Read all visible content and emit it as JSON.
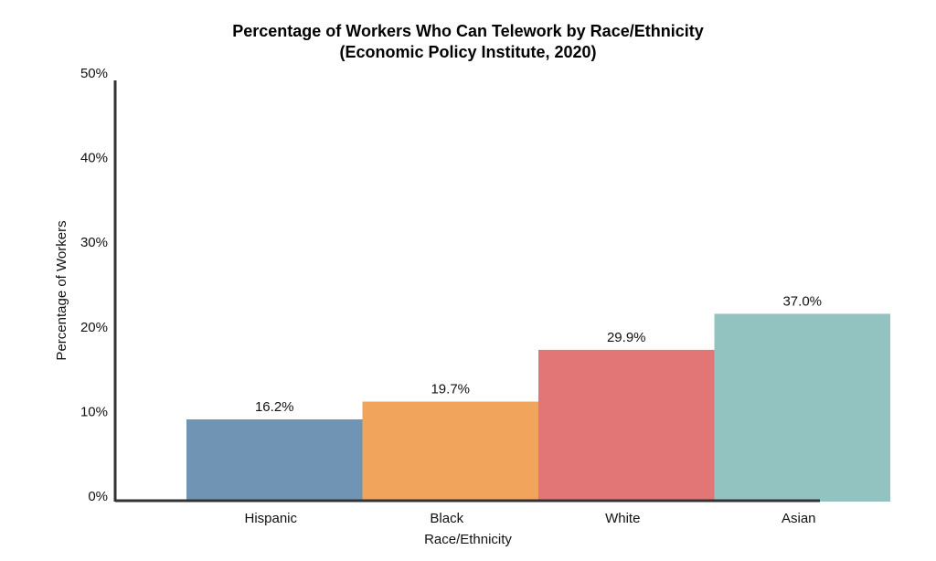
{
  "chart_data": {
    "type": "bar",
    "title": "Percentage of Workers Who Can Telework by Race/Ethnicity",
    "subtitle": "(Economic Policy Institute, 2020)",
    "xlabel": "Race/Ethnicity",
    "ylabel": "Percentage of Workers",
    "categories": [
      "Hispanic",
      "Black",
      "White",
      "Asian"
    ],
    "values": [
      16.2,
      19.7,
      29.9,
      37.0
    ],
    "value_labels": [
      "16.2%",
      "19.7%",
      "29.9%",
      "37.0%"
    ],
    "colors": [
      "#7094b4",
      "#f0a45c",
      "#e27677",
      "#93c3c1"
    ],
    "yticks": [
      0,
      10,
      20,
      30,
      40,
      50
    ],
    "ytick_labels": [
      "0%",
      "10%",
      "20%",
      "30%",
      "40%",
      "50%"
    ],
    "ylim": [
      0,
      50
    ],
    "grid": false,
    "legend": false
  }
}
